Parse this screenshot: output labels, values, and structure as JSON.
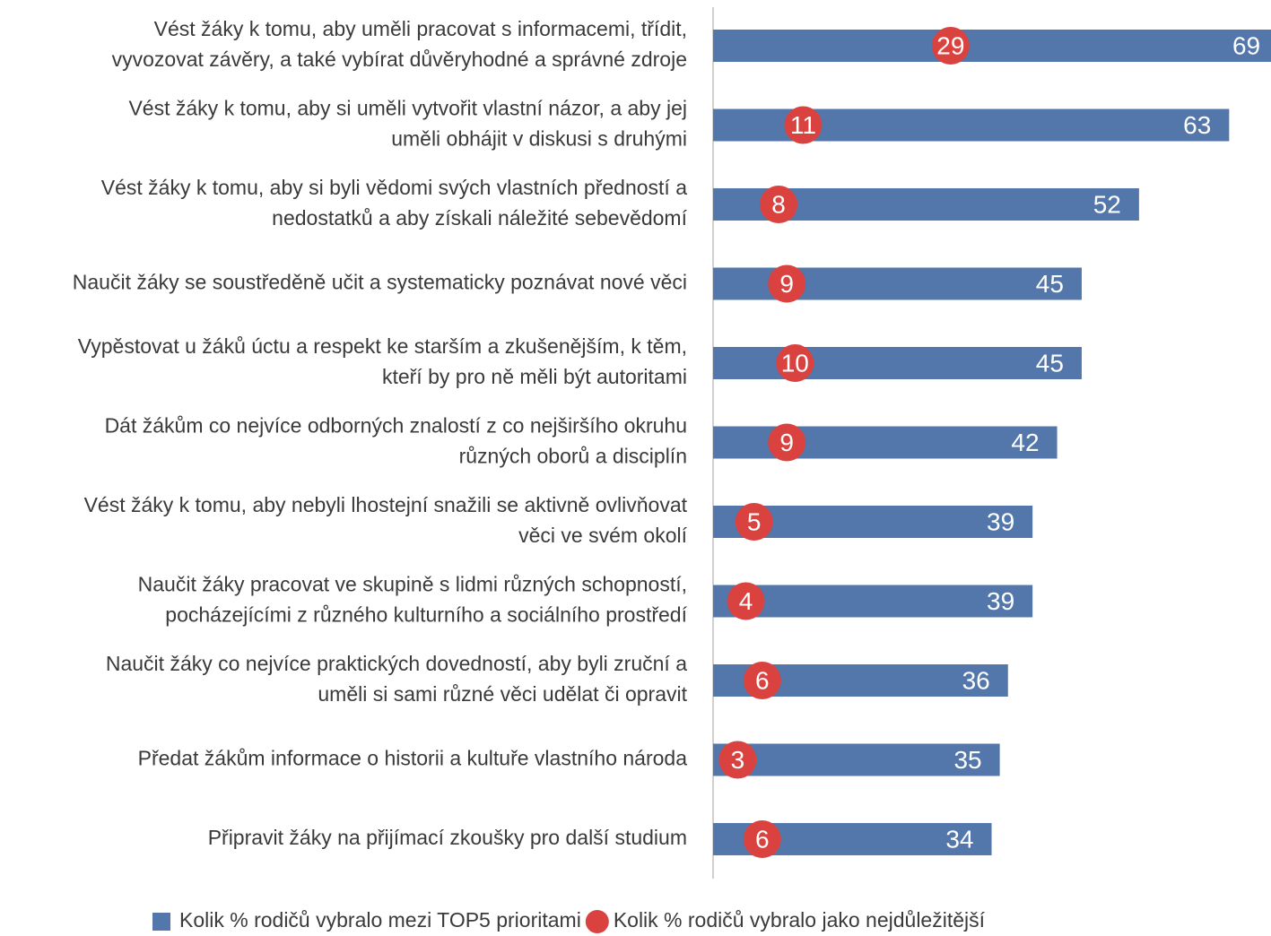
{
  "chart_data": {
    "type": "bar",
    "orientation": "horizontal",
    "categories": [
      [
        "Vést žáky k tomu, aby uměli pracovat s informacemi, třídit,",
        "vyvozovat závěry, a také vybírat důvěryhodné a správné zdroje"
      ],
      [
        "Vést žáky k tomu, aby si uměli vytvořit vlastní názor, a aby jej",
        "uměli obhájit v diskusi s druhými"
      ],
      [
        "Vést žáky k tomu, aby si byli vědomi svých vlastních předností a",
        "nedostatků a aby získali náležité sebevědomí"
      ],
      [
        "Naučit žáky se soustředěně učit a systematicky poznávat nové věci"
      ],
      [
        "Vypěstovat u žáků úctu a respekt ke starším a zkušenějším, k těm,",
        "kteří by pro ně měli být autoritami"
      ],
      [
        "Dát žákům co nejvíce odborných znalostí z co nejširšího okruhu",
        "různých oborů a disciplín"
      ],
      [
        "Vést žáky k tomu, aby nebyli lhostejní snažili se aktivně ovlivňovat",
        "věci ve svém okolí"
      ],
      [
        "Naučit žáky pracovat ve skupině s lidmi různých schopností,",
        "pocházejícími z různého kulturního a sociálního prostředí"
      ],
      [
        "Naučit žáky co nejvíce praktických dovedností, aby byli zruční a",
        "uměli si sami různé věci udělat či opravit"
      ],
      [
        "Předat žákům informace o historii a kultuře vlastního národa"
      ],
      [
        "Připravit žáky na přijímací zkoušky pro další studium"
      ]
    ],
    "series": [
      {
        "name": "Kolik % rodičů vybralo mezi TOP5 prioritami",
        "type": "bar",
        "color": "#5377ab",
        "values": [
          69,
          63,
          52,
          45,
          45,
          42,
          39,
          39,
          36,
          35,
          34
        ]
      },
      {
        "name": "Kolik % rodičů vybralo jako nejdůležitější",
        "type": "scatter",
        "color": "#d9423f",
        "values": [
          29,
          11,
          8,
          9,
          10,
          9,
          5,
          4,
          6,
          3,
          6
        ]
      }
    ],
    "xlim": [
      0,
      68
    ],
    "legend": "bottom"
  }
}
